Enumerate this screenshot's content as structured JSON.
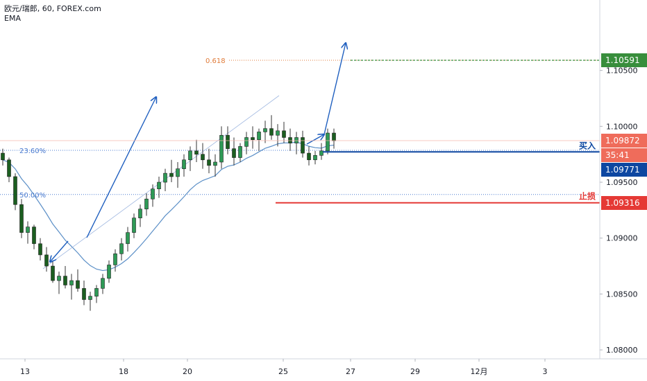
{
  "legend": {
    "line1": "欧元/瑞郎, 60, FOREX.com",
    "line2": "EMA"
  },
  "colors": {
    "up": "#26a69a",
    "down": "#ef5350",
    "candle_up_fill": "#26a69a",
    "candle_down_fill": "#26a69a",
    "candle_body": "#2e9a56",
    "wick": "#333333",
    "ema": "#5b8fc7",
    "arrow": "#1f5fbf",
    "fib_blue": "#4a7bd0",
    "fib_orange": "#e07b39",
    "target": "#388e3c",
    "entry": "#0d47a1",
    "stop": "#e53935",
    "price_tag": "#ef6c5b"
  },
  "chart_data": {
    "type": "candlestick",
    "x_ticks": [
      "13",
      "18",
      "20",
      "25",
      "27",
      "29",
      "12月",
      "3"
    ],
    "y_ticks": [
      "1.10500",
      "1.10000",
      "1.09500",
      "1.09000",
      "1.08500",
      "1.08000"
    ],
    "ylim": [
      1.0792,
      1.1113
    ],
    "price_tags": [
      {
        "label": "1.10591",
        "value": 1.10591,
        "role": "target"
      },
      {
        "label": "1.09872",
        "value": 1.09872,
        "role": "current"
      },
      {
        "label": "35:41",
        "value": 1.0981,
        "role": "countdown"
      },
      {
        "label": "1.09771",
        "value": 1.09771,
        "role": "entry"
      },
      {
        "label": "1.09316",
        "value": 1.09316,
        "role": "stop"
      }
    ],
    "fib_levels": [
      {
        "label": "0.618",
        "value": 1.10591
      },
      {
        "label": "23.60%",
        "value": 1.09785
      },
      {
        "label": "50.00%",
        "value": 1.0939
      }
    ],
    "annotations": {
      "entry_label": "买入",
      "stop_label": "止损"
    },
    "candles": [
      [
        1.0976,
        1.098,
        1.0965,
        1.097
      ],
      [
        1.097,
        1.0972,
        1.095,
        1.0955
      ],
      [
        1.0955,
        1.0958,
        1.0925,
        1.093
      ],
      [
        1.093,
        1.0935,
        1.09,
        1.0905
      ],
      [
        1.0905,
        1.0915,
        1.0895,
        1.091
      ],
      [
        1.091,
        1.0912,
        1.089,
        1.0895
      ],
      [
        1.0895,
        1.09,
        1.088,
        1.0885
      ],
      [
        1.0885,
        1.0892,
        1.087,
        1.0875
      ],
      [
        1.0875,
        1.088,
        1.086,
        1.0862
      ],
      [
        1.0862,
        1.087,
        1.085,
        1.0866
      ],
      [
        1.0866,
        1.0875,
        1.0855,
        1.0858
      ],
      [
        1.0858,
        1.0868,
        1.0845,
        1.0862
      ],
      [
        1.0862,
        1.0872,
        1.0852,
        1.0855
      ],
      [
        1.0855,
        1.0862,
        1.084,
        1.0845
      ],
      [
        1.0845,
        1.0852,
        1.0835,
        1.0848
      ],
      [
        1.0848,
        1.0858,
        1.0842,
        1.0855
      ],
      [
        1.0855,
        1.0868,
        1.085,
        1.0864
      ],
      [
        1.0864,
        1.088,
        1.086,
        1.0876
      ],
      [
        1.0876,
        1.089,
        1.087,
        1.0886
      ],
      [
        1.0886,
        1.09,
        1.088,
        1.0895
      ],
      [
        1.0895,
        1.091,
        1.0888,
        1.0905
      ],
      [
        1.0905,
        1.0922,
        1.09,
        1.0918
      ],
      [
        1.0918,
        1.093,
        1.091,
        1.0926
      ],
      [
        1.0926,
        1.094,
        1.092,
        1.0935
      ],
      [
        1.0935,
        1.0948,
        1.0928,
        1.0944
      ],
      [
        1.0944,
        1.0955,
        1.0936,
        1.095
      ],
      [
        1.095,
        1.0962,
        1.0942,
        1.0958
      ],
      [
        1.0958,
        1.097,
        1.095,
        1.0955
      ],
      [
        1.0955,
        1.0968,
        1.0945,
        1.0962
      ],
      [
        1.0962,
        1.0975,
        1.0955,
        1.097
      ],
      [
        1.097,
        1.0982,
        1.096,
        1.0978
      ],
      [
        1.0978,
        1.0988,
        1.0968,
        1.0975
      ],
      [
        1.0975,
        1.0985,
        1.0962,
        1.097
      ],
      [
        1.097,
        1.098,
        1.0958,
        1.0965
      ],
      [
        1.0965,
        1.0975,
        1.0955,
        1.0968
      ],
      [
        1.0968,
        1.1,
        1.0962,
        1.0992
      ],
      [
        1.0992,
        1.1,
        1.0975,
        1.098
      ],
      [
        1.098,
        1.099,
        1.0965,
        1.0972
      ],
      [
        1.0972,
        1.0985,
        1.0968,
        1.0982
      ],
      [
        1.0982,
        1.0995,
        1.0975,
        1.099
      ],
      [
        1.099,
        1.1,
        1.098,
        1.0988
      ],
      [
        1.0988,
        1.0998,
        1.0978,
        1.0995
      ],
      [
        1.0995,
        1.1005,
        1.0985,
        1.0998
      ],
      [
        1.0998,
        1.101,
        1.0988,
        1.0992
      ],
      [
        1.0992,
        1.1002,
        1.0982,
        1.0996
      ],
      [
        1.0996,
        1.1004,
        1.0985,
        1.099
      ],
      [
        1.099,
        1.0998,
        1.0978,
        1.0985
      ],
      [
        1.0985,
        1.0995,
        1.0975,
        1.099
      ],
      [
        1.099,
        1.0996,
        1.0972,
        1.0976
      ],
      [
        1.0976,
        1.0982,
        1.0965,
        1.097
      ],
      [
        1.097,
        1.0978,
        1.0966,
        1.0974
      ],
      [
        1.0974,
        1.0985,
        1.097,
        1.0978
      ],
      [
        1.0978,
        1.0998,
        1.0975,
        1.0994
      ],
      [
        1.0994,
        1.0998,
        1.098,
        1.0987
      ]
    ]
  }
}
